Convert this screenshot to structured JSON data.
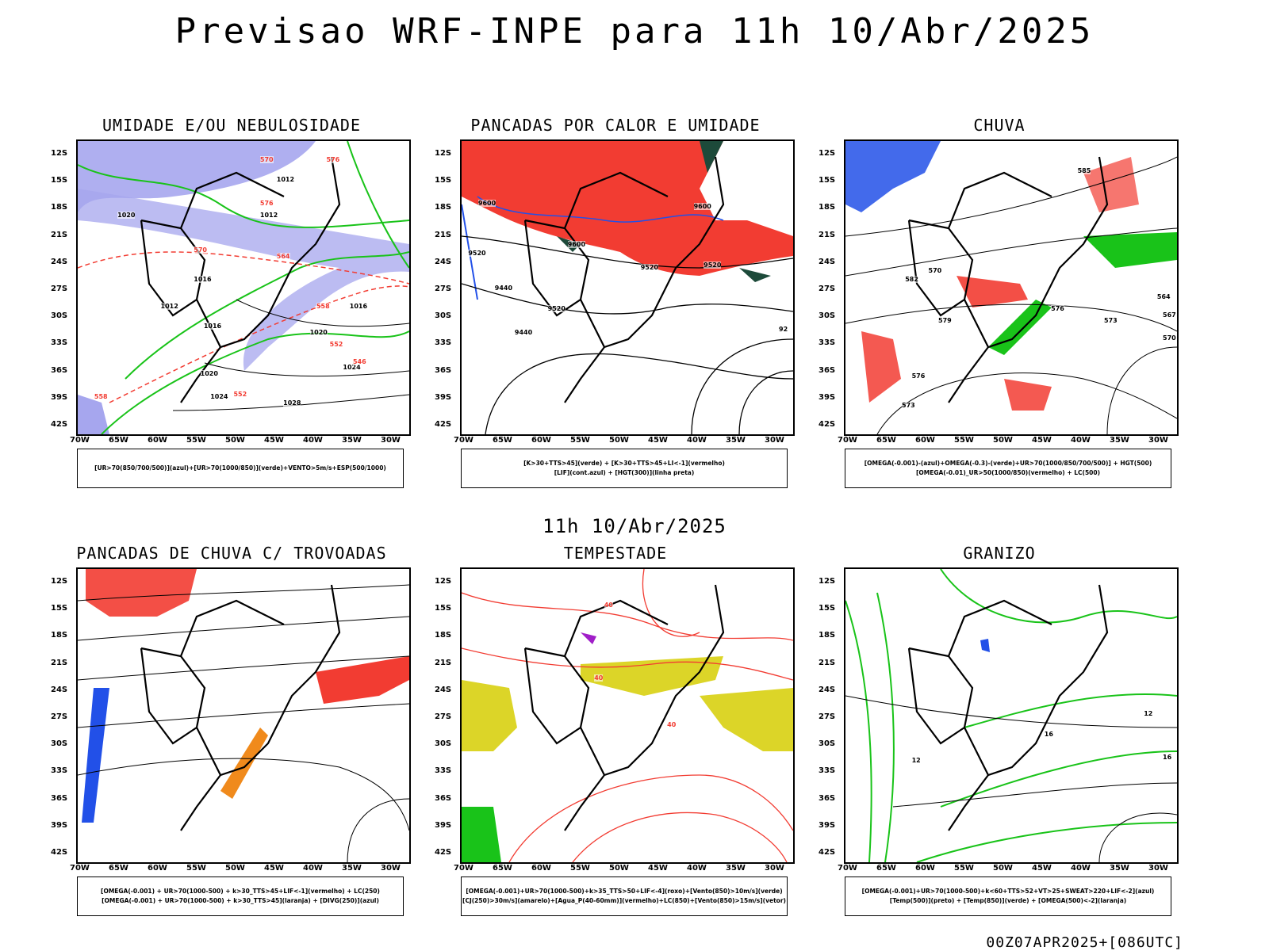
{
  "header": {
    "title": "Previsao WRF-INPE  para 11h 10/Abr/2025",
    "subtitle": "11h 10/Abr/2025",
    "footer": "00Z07APR2025+[086UTC]"
  },
  "axes": {
    "lat_labels": [
      "12S",
      "15S",
      "18S",
      "21S",
      "24S",
      "27S",
      "30S",
      "33S",
      "36S",
      "39S",
      "42S"
    ],
    "lon_labels": [
      "70W",
      "65W",
      "60W",
      "55W",
      "50W",
      "45W",
      "40W",
      "35W",
      "30W"
    ]
  },
  "colors": {
    "red": "#f23c32",
    "green": "#19c319",
    "blue": "#2250e8",
    "lavender": "#a6a6ee",
    "darkgreen": "#1d4a3a",
    "yellow": "#dcd528",
    "orange": "#f08a1c",
    "purple": "#a01ec8"
  },
  "panels": [
    {
      "title": "UMIDADE E/OU NEBULOSIDADE",
      "legend_lines": [
        "[UR>70(850/700/500)](azul)+[UR>70(1000/850)](verde)+VENTO>5m/s+ESP(500/1000)"
      ],
      "labels": [
        "1012",
        "1012",
        "1012",
        "1020",
        "1016",
        "1016",
        "1020",
        "1016",
        "1024",
        "1020",
        "1024",
        "1028",
        "570",
        "576",
        "576",
        "570",
        "564",
        "558",
        "552",
        "546",
        "558",
        "552"
      ]
    },
    {
      "title": "PANCADAS POR CALOR E UMIDADE",
      "legend_lines": [
        "[K>30+TTS>45](verde) + [K>30+TTS>45+LI<-1](vermelho)",
        "[LIF](cont.azul) + [HGT(300)](linha preta)"
      ],
      "labels": [
        "9600",
        "9600",
        "9600",
        "9520",
        "9520",
        "9520",
        "9440",
        "9440",
        "9520",
        "92"
      ]
    },
    {
      "title": "CHUVA",
      "legend_lines": [
        "[OMEGA(-0.001)-(azul)+OMEGA(-0.3)-(verde)+UR>70(1000/850/700/500)] + HGT(500)",
        "[OMEGA(-0.01)_UR>50(1000/850)(vermelho) + LC(500)"
      ],
      "labels": [
        "585",
        "582",
        "576",
        "579",
        "573",
        "576",
        "570",
        "567",
        "564",
        "573",
        "570"
      ]
    },
    {
      "title": "PANCADAS DE CHUVA C/ TROVOADAS",
      "legend_lines": [
        "[OMEGA(-0.001) + UR>70(1000-500) + k>30_TTS>45+LIF<-1](vermelho) + LC(250)",
        "[OMEGA(-0.001) + UR>70(1000-500) + k>30_TTS>45](laranja) + [DIVG(250)](azul)"
      ],
      "labels": []
    },
    {
      "title": "TEMPESTADE",
      "legend_lines": [
        "[OMEGA(-0.001)+UR>70(1000-500)+k>35_TTS>50+LIF<-4](roxo)+[Vento(850)>10m/s](verde)",
        "[CJ(250)>30m/s](amarelo)+[Agua_P(40-60mm)](vermelho)+LC(850)+[Vento(850)>15m/s](vetor)"
      ],
      "labels": [
        "40",
        "40",
        "40"
      ]
    },
    {
      "title": "GRANIZO",
      "legend_lines": [
        "[OMEGA(-0.001)+UR>70(1000-500)+k<60+TTS>52+VT>25+SWEAT>220+LIF<-2](azul)",
        "[Temp(500)](preto) + [Temp(850)](verde) + [OMEGA(500)<-2](laranja)"
      ],
      "labels": [
        "12",
        "16",
        "12",
        "16"
      ]
    }
  ]
}
